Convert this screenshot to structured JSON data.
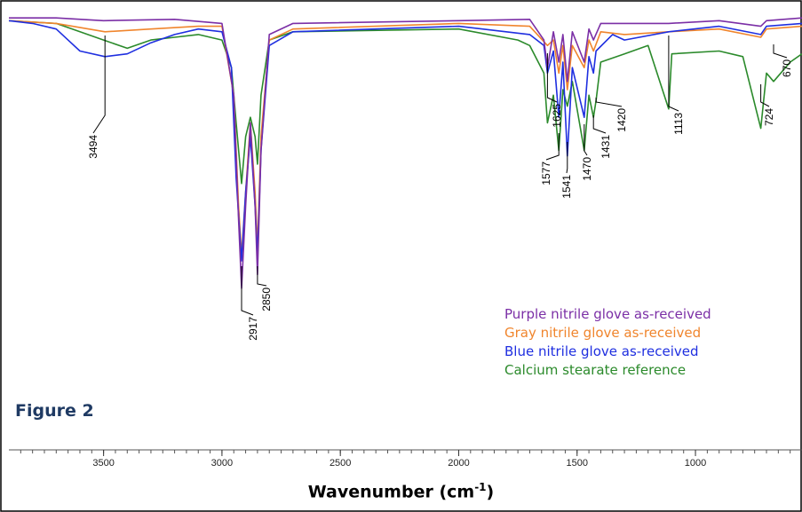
{
  "figure_label": "Figure 2",
  "chart_data": {
    "type": "line",
    "xlabel_main": "Wavenumber (cm",
    "xlabel_sup": "-1",
    "xlabel_close": ")",
    "xlim": [
      3900,
      550
    ],
    "x_reversed": true,
    "x_ticks": [
      3500,
      3000,
      2500,
      2000,
      1500,
      1000
    ],
    "grid": false,
    "legend_position": "bottom-right",
    "series": [
      {
        "name": "Purple nitrile glove as-received",
        "color": "#7b2fa6",
        "points": [
          [
            3900,
            0.98
          ],
          [
            3700,
            0.98
          ],
          [
            3500,
            0.97
          ],
          [
            3200,
            0.975
          ],
          [
            3000,
            0.96
          ],
          [
            2950,
            0.7
          ],
          [
            2930,
            0.25
          ],
          [
            2917,
            0.0
          ],
          [
            2900,
            0.3
          ],
          [
            2880,
            0.6
          ],
          [
            2860,
            0.3
          ],
          [
            2850,
            0.05
          ],
          [
            2835,
            0.5
          ],
          [
            2800,
            0.92
          ],
          [
            2700,
            0.96
          ],
          [
            2000,
            0.97
          ],
          [
            1700,
            0.975
          ],
          [
            1640,
            0.9
          ],
          [
            1625,
            0.8
          ],
          [
            1600,
            0.93
          ],
          [
            1577,
            0.82
          ],
          [
            1560,
            0.92
          ],
          [
            1541,
            0.75
          ],
          [
            1520,
            0.93
          ],
          [
            1470,
            0.82
          ],
          [
            1450,
            0.94
          ],
          [
            1431,
            0.9
          ],
          [
            1400,
            0.96
          ],
          [
            1113,
            0.96
          ],
          [
            900,
            0.97
          ],
          [
            724,
            0.95
          ],
          [
            700,
            0.97
          ],
          [
            550,
            0.98
          ]
        ]
      },
      {
        "name": "Gray nitrile glove as-received",
        "color": "#f0852d",
        "points": [
          [
            3900,
            0.97
          ],
          [
            3700,
            0.96
          ],
          [
            3494,
            0.93
          ],
          [
            3300,
            0.94
          ],
          [
            3100,
            0.95
          ],
          [
            3000,
            0.95
          ],
          [
            2950,
            0.7
          ],
          [
            2930,
            0.3
          ],
          [
            2917,
            0.12
          ],
          [
            2900,
            0.35
          ],
          [
            2880,
            0.6
          ],
          [
            2860,
            0.35
          ],
          [
            2850,
            0.15
          ],
          [
            2835,
            0.55
          ],
          [
            2800,
            0.9
          ],
          [
            2700,
            0.94
          ],
          [
            2000,
            0.96
          ],
          [
            1700,
            0.95
          ],
          [
            1625,
            0.88
          ],
          [
            1600,
            0.9
          ],
          [
            1577,
            0.78
          ],
          [
            1560,
            0.88
          ],
          [
            1541,
            0.72
          ],
          [
            1520,
            0.88
          ],
          [
            1470,
            0.8
          ],
          [
            1450,
            0.9
          ],
          [
            1431,
            0.86
          ],
          [
            1400,
            0.93
          ],
          [
            1300,
            0.92
          ],
          [
            1113,
            0.93
          ],
          [
            900,
            0.94
          ],
          [
            724,
            0.91
          ],
          [
            700,
            0.94
          ],
          [
            550,
            0.95
          ]
        ]
      },
      {
        "name": "Blue nitrile glove as-received",
        "color": "#1f2fe0",
        "points": [
          [
            3900,
            0.97
          ],
          [
            3800,
            0.96
          ],
          [
            3700,
            0.94
          ],
          [
            3650,
            0.9
          ],
          [
            3600,
            0.86
          ],
          [
            3494,
            0.84
          ],
          [
            3400,
            0.85
          ],
          [
            3300,
            0.89
          ],
          [
            3200,
            0.92
          ],
          [
            3100,
            0.94
          ],
          [
            3000,
            0.93
          ],
          [
            2960,
            0.8
          ],
          [
            2940,
            0.4
          ],
          [
            2917,
            0.1
          ],
          [
            2900,
            0.35
          ],
          [
            2880,
            0.55
          ],
          [
            2860,
            0.3
          ],
          [
            2850,
            0.12
          ],
          [
            2835,
            0.5
          ],
          [
            2800,
            0.88
          ],
          [
            2700,
            0.93
          ],
          [
            2000,
            0.95
          ],
          [
            1700,
            0.92
          ],
          [
            1640,
            0.88
          ],
          [
            1625,
            0.78
          ],
          [
            1600,
            0.86
          ],
          [
            1577,
            0.62
          ],
          [
            1560,
            0.82
          ],
          [
            1541,
            0.48
          ],
          [
            1520,
            0.8
          ],
          [
            1470,
            0.62
          ],
          [
            1450,
            0.84
          ],
          [
            1431,
            0.78
          ],
          [
            1420,
            0.86
          ],
          [
            1350,
            0.92
          ],
          [
            1300,
            0.9
          ],
          [
            1113,
            0.93
          ],
          [
            900,
            0.95
          ],
          [
            724,
            0.92
          ],
          [
            700,
            0.95
          ],
          [
            550,
            0.96
          ]
        ]
      },
      {
        "name": "Calcium stearate reference",
        "color": "#2b8a2b",
        "points": [
          [
            3900,
            0.97
          ],
          [
            3700,
            0.96
          ],
          [
            3600,
            0.93
          ],
          [
            3500,
            0.9
          ],
          [
            3400,
            0.87
          ],
          [
            3300,
            0.9
          ],
          [
            3200,
            0.91
          ],
          [
            3100,
            0.92
          ],
          [
            3000,
            0.9
          ],
          [
            2960,
            0.8
          ],
          [
            2940,
            0.6
          ],
          [
            2917,
            0.38
          ],
          [
            2900,
            0.55
          ],
          [
            2880,
            0.62
          ],
          [
            2860,
            0.55
          ],
          [
            2850,
            0.45
          ],
          [
            2835,
            0.7
          ],
          [
            2800,
            0.9
          ],
          [
            2700,
            0.93
          ],
          [
            2000,
            0.94
          ],
          [
            1750,
            0.9
          ],
          [
            1700,
            0.88
          ],
          [
            1640,
            0.78
          ],
          [
            1625,
            0.6
          ],
          [
            1600,
            0.7
          ],
          [
            1577,
            0.5
          ],
          [
            1560,
            0.72
          ],
          [
            1541,
            0.66
          ],
          [
            1520,
            0.75
          ],
          [
            1470,
            0.5
          ],
          [
            1450,
            0.7
          ],
          [
            1431,
            0.62
          ],
          [
            1420,
            0.68
          ],
          [
            1400,
            0.82
          ],
          [
            1300,
            0.85
          ],
          [
            1200,
            0.88
          ],
          [
            1113,
            0.65
          ],
          [
            1100,
            0.85
          ],
          [
            900,
            0.86
          ],
          [
            800,
            0.84
          ],
          [
            724,
            0.58
          ],
          [
            700,
            0.78
          ],
          [
            670,
            0.75
          ],
          [
            600,
            0.82
          ],
          [
            550,
            0.85
          ]
        ]
      }
    ],
    "annotations": [
      {
        "text": "3494",
        "x": 3494
      },
      {
        "text": "2917",
        "x": 2917
      },
      {
        "text": "2850",
        "x": 2850
      },
      {
        "text": "1625",
        "x": 1625
      },
      {
        "text": "1577",
        "x": 1577
      },
      {
        "text": "1541",
        "x": 1541
      },
      {
        "text": "1470",
        "x": 1470
      },
      {
        "text": "1431",
        "x": 1431
      },
      {
        "text": "1420",
        "x": 1420
      },
      {
        "text": "1113",
        "x": 1113
      },
      {
        "text": "724",
        "x": 724
      },
      {
        "text": "670",
        "x": 670
      }
    ]
  }
}
